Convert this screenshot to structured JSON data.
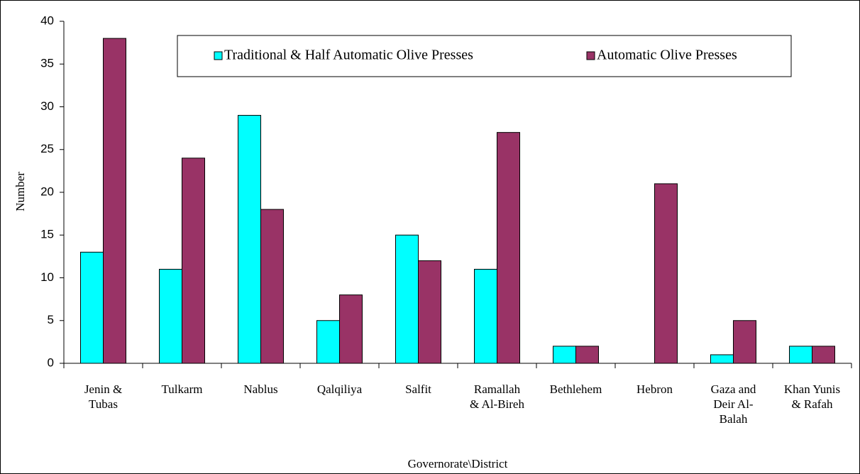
{
  "chart_data": {
    "type": "bar",
    "x_label": "Governorate\\District",
    "y_label": "Number",
    "categories": [
      "Jenin & Tubas",
      "Tulkarm",
      "Nablus",
      "Qalqiliya",
      "Salfit",
      "Ramallah & Al-Bireh",
      "Bethlehem",
      "Hebron",
      "Gaza and Deir Al-Balah",
      "Khan Yunis & Rafah"
    ],
    "series": [
      {
        "name": "Traditional & Half Automatic Olive Presses",
        "color": "#00ffff",
        "values": [
          13,
          11,
          29,
          5,
          15,
          11,
          2,
          0,
          1,
          2
        ]
      },
      {
        "name": "Automatic Olive Presses",
        "color": "#993366",
        "values": [
          38,
          24,
          18,
          8,
          12,
          27,
          2,
          21,
          5,
          2
        ]
      }
    ],
    "ylim": [
      0,
      40
    ],
    "yticks": [
      0,
      5,
      10,
      15,
      20,
      25,
      30,
      35,
      40
    ],
    "legend": "top"
  }
}
